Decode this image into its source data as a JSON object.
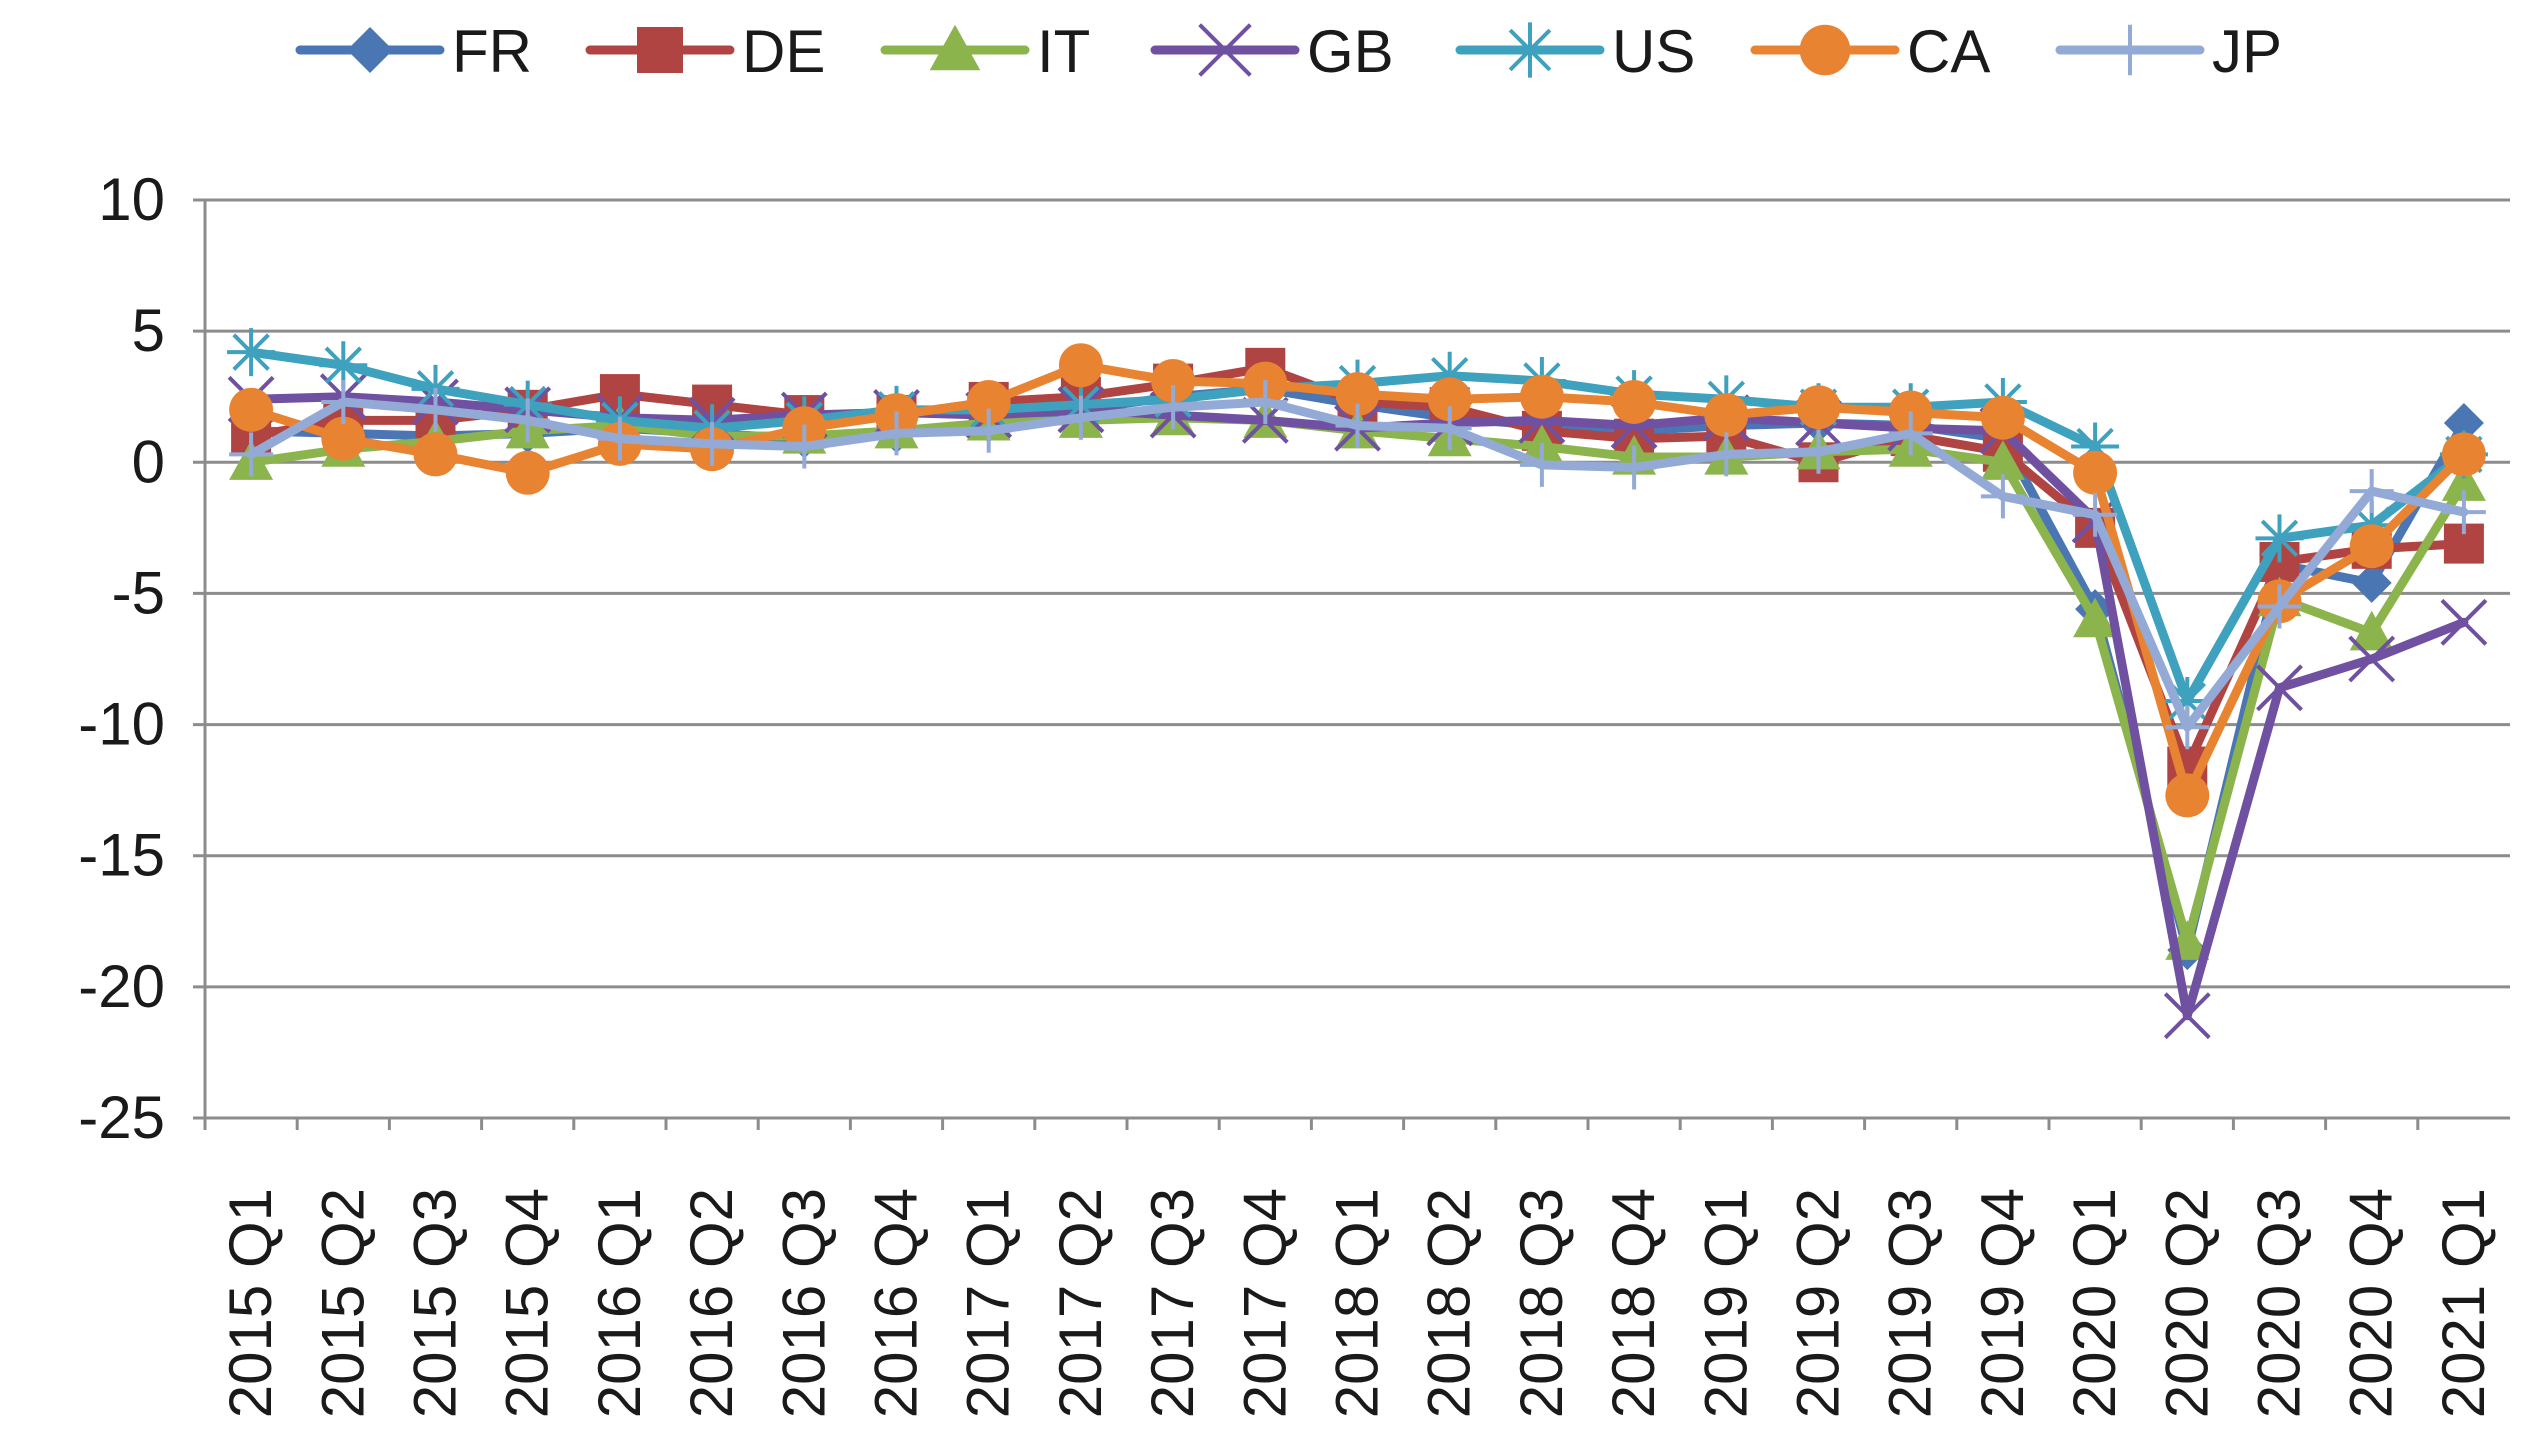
{
  "chart_data": {
    "type": "line",
    "title": "",
    "xlabel": "",
    "ylabel": "",
    "ylim": [
      -25,
      10
    ],
    "yticks": [
      10,
      5,
      0,
      -5,
      -10,
      -15,
      -20,
      -25
    ],
    "grid": true,
    "legend_position": "top",
    "categories": [
      "2015 Q1",
      "2015 Q2",
      "2015 Q3",
      "2015 Q4",
      "2016 Q1",
      "2016 Q2",
      "2016 Q3",
      "2016 Q4",
      "2017 Q1",
      "2017 Q2",
      "2017 Q3",
      "2017 Q4",
      "2018 Q1",
      "2018 Q2",
      "2018 Q3",
      "2018 Q4",
      "2019 Q1",
      "2019 Q2",
      "2019 Q3",
      "2019 Q4",
      "2020 Q1",
      "2020 Q2",
      "2020 Q3",
      "2020 Q4",
      "2021 Q1"
    ],
    "series": [
      {
        "name": "FR",
        "color": "#4a76b4",
        "marker": "diamond",
        "values": [
          1.2,
          1.1,
          1.0,
          1.1,
          1.3,
          1.1,
          0.9,
          1.1,
          1.5,
          2.0,
          2.5,
          2.8,
          2.2,
          1.7,
          1.4,
          1.2,
          1.4,
          1.5,
          1.4,
          0.9,
          -5.6,
          -18.6,
          -3.9,
          -4.6,
          1.5
        ]
      },
      {
        "name": "DE",
        "color": "#b04442",
        "marker": "square",
        "values": [
          1.0,
          1.6,
          1.6,
          2.0,
          2.6,
          2.2,
          1.8,
          1.8,
          2.3,
          2.5,
          3.0,
          3.6,
          2.3,
          2.1,
          1.2,
          0.9,
          1.0,
          0.0,
          1.0,
          0.4,
          -2.5,
          -11.6,
          -3.8,
          -3.3,
          -3.1
        ]
      },
      {
        "name": "IT",
        "color": "#8bb44c",
        "marker": "triangle",
        "values": [
          0.0,
          0.5,
          0.8,
          1.2,
          1.4,
          1.0,
          1.0,
          1.2,
          1.5,
          1.6,
          1.7,
          1.6,
          1.2,
          0.9,
          0.6,
          0.2,
          0.2,
          0.4,
          0.5,
          0.0,
          -6.0,
          -18.3,
          -5.2,
          -6.5,
          -0.8
        ]
      },
      {
        "name": "GB",
        "color": "#7050a0",
        "marker": "x",
        "values": [
          2.4,
          2.5,
          2.3,
          2.0,
          1.7,
          1.6,
          1.8,
          1.9,
          1.8,
          2.0,
          1.8,
          1.6,
          1.3,
          1.5,
          1.6,
          1.4,
          1.7,
          1.5,
          1.3,
          1.2,
          -2.2,
          -21.1,
          -8.6,
          -7.5,
          -6.1
        ]
      },
      {
        "name": "US",
        "color": "#3ea1bd",
        "marker": "star",
        "values": [
          4.2,
          3.7,
          2.8,
          2.2,
          1.6,
          1.3,
          1.6,
          2.0,
          2.0,
          2.2,
          2.4,
          2.8,
          3.0,
          3.3,
          3.1,
          2.6,
          2.4,
          2.1,
          2.1,
          2.3,
          0.6,
          -9.1,
          -2.9,
          -2.4,
          0.3
        ]
      },
      {
        "name": "CA",
        "color": "#e88431",
        "marker": "circle",
        "values": [
          2.0,
          0.9,
          0.3,
          -0.4,
          0.7,
          0.5,
          1.3,
          1.8,
          2.3,
          3.7,
          3.1,
          3.0,
          2.6,
          2.4,
          2.5,
          2.3,
          1.8,
          2.1,
          1.9,
          1.7,
          -0.4,
          -12.7,
          -5.3,
          -3.2,
          0.3
        ]
      },
      {
        "name": "JP",
        "color": "#94aad6",
        "marker": "plus",
        "values": [
          0.3,
          2.3,
          2.0,
          1.6,
          0.9,
          0.7,
          0.6,
          1.1,
          1.2,
          1.7,
          2.1,
          2.3,
          1.4,
          1.3,
          -0.1,
          -0.2,
          0.3,
          0.4,
          1.1,
          -1.3,
          -2.0,
          -10.1,
          -5.5,
          -1.1,
          -1.9
        ]
      }
    ]
  }
}
